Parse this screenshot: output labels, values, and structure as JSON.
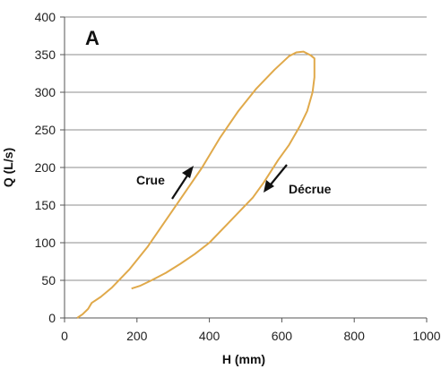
{
  "chart_data": {
    "type": "line",
    "panel_label": "A",
    "title": "",
    "xlabel": "H (mm)",
    "ylabel": "Q (L/s)",
    "xlim": [
      0,
      1000
    ],
    "ylim": [
      0,
      400
    ],
    "x_ticks": [
      0,
      200,
      400,
      600,
      800,
      1000
    ],
    "y_ticks": [
      0,
      50,
      100,
      150,
      200,
      250,
      300,
      350,
      400
    ],
    "grid": "horizontal",
    "line_color": "#E0A94A",
    "series": [
      {
        "points": [
          [
            35,
            0
          ],
          [
            50,
            5
          ],
          [
            65,
            12
          ],
          [
            75,
            20
          ],
          [
            100,
            28
          ],
          [
            130,
            40
          ],
          [
            180,
            65
          ],
          [
            230,
            95
          ],
          [
            280,
            130
          ],
          [
            330,
            165
          ],
          [
            380,
            200
          ],
          [
            430,
            240
          ],
          [
            480,
            275
          ],
          [
            530,
            305
          ],
          [
            580,
            330
          ],
          [
            620,
            348
          ],
          [
            640,
            353
          ],
          [
            660,
            354
          ],
          [
            680,
            349
          ],
          [
            690,
            345
          ],
          [
            690,
            320
          ],
          [
            685,
            300
          ],
          [
            670,
            275
          ],
          [
            650,
            255
          ],
          [
            620,
            230
          ],
          [
            590,
            210
          ],
          [
            550,
            180
          ],
          [
            520,
            160
          ],
          [
            480,
            140
          ],
          [
            440,
            120
          ],
          [
            400,
            100
          ],
          [
            360,
            85
          ],
          [
            320,
            72
          ],
          [
            280,
            60
          ],
          [
            240,
            50
          ],
          [
            210,
            43
          ],
          [
            185,
            39
          ]
        ]
      }
    ],
    "annotations": [
      {
        "text": "Crue",
        "direction": "rising"
      },
      {
        "text": "Décrue",
        "direction": "falling"
      }
    ]
  }
}
